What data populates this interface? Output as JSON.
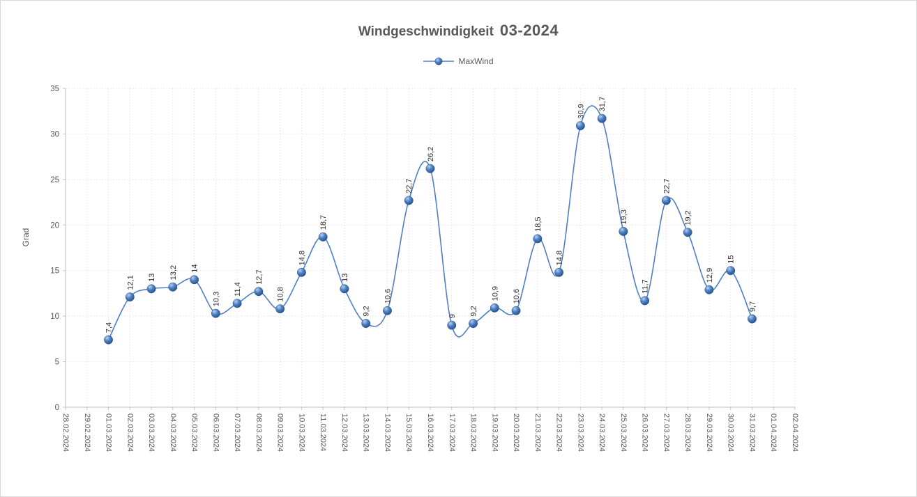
{
  "header": {
    "title_main": "Windgeschwindigkeit",
    "title_suffix": "03-2024"
  },
  "legend": {
    "label": "MaxWind"
  },
  "chart_data": {
    "type": "line",
    "smooth": true,
    "title": "Windgeschwindigkeit 03-2024",
    "xlabel": "",
    "ylabel": "Grad",
    "ylim": [
      0,
      35
    ],
    "ytick_step": 5,
    "yticks": [
      0,
      5,
      10,
      15,
      20,
      25,
      30,
      35
    ],
    "grid": true,
    "legend_position": "top",
    "categories": [
      "28.02.2024",
      "29.02.2024",
      "01.03.2024",
      "02.03.2024",
      "03.03.2024",
      "04.03.2024",
      "05.03.2024",
      "06.03.2024",
      "07.03.2024",
      "08.03.2024",
      "09.03.2024",
      "10.03.2024",
      "11.03.2024",
      "12.03.2024",
      "13.03.2024",
      "14.03.2024",
      "15.03.2024",
      "16.03.2024",
      "17.03.2024",
      "18.03.2024",
      "19.03.2024",
      "20.03.2024",
      "21.03.2024",
      "22.03.2024",
      "23.03.2024",
      "24.03.2024",
      "25.03.2024",
      "26.03.2024",
      "27.03.2024",
      "28.03.2024",
      "29.03.2024",
      "30.03.2024",
      "31.03.2024",
      "01.04.2024",
      "02.04.2024"
    ],
    "series": [
      {
        "name": "MaxWind",
        "start_category_index": 2,
        "values": [
          7.4,
          12.1,
          13,
          13.2,
          14,
          10.3,
          11.4,
          12.7,
          10.8,
          14.8,
          18.7,
          13,
          9.2,
          10.6,
          22.7,
          26.2,
          9,
          9.2,
          10.9,
          10.6,
          18.5,
          14.8,
          30.9,
          31.7,
          19.3,
          11.7,
          22.7,
          19.2,
          12.9,
          15,
          9.7
        ],
        "labels": [
          "7,4",
          "12,1",
          "13",
          "13,2",
          "14",
          "10,3",
          "11,4",
          "12,7",
          "10,8",
          "14,8",
          "18,7",
          "13",
          "9,2",
          "10,6",
          "22,7",
          "26,2",
          "9",
          "9,2",
          "10,9",
          "10,6",
          "18,5",
          "14,8",
          "30,9",
          "31,7",
          "19,3",
          "11,7",
          "22,7",
          "19,2",
          "12,9",
          "15",
          "9,7"
        ]
      }
    ],
    "colors": {
      "line": "#4e7fc4",
      "marker_highlight": "#b5d2f0",
      "marker_mid": "#4f80c2",
      "marker_dark": "#1e4c85",
      "marker_edge": "#2a5491",
      "gridline": "#e2e2e2",
      "axis": "#bfbfbf",
      "tick": "#c6c6c6",
      "tick_text": "#595959",
      "data_label": "#303030",
      "title_text": "#595959"
    }
  }
}
